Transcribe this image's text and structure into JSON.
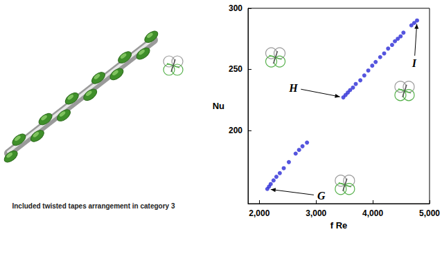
{
  "chart_data": {
    "type": "scatter",
    "x_label": "f Re",
    "y_label": "Nu",
    "x": [
      2140,
      2170,
      2200,
      2250,
      2300,
      2360,
      2430,
      2520,
      2640,
      2700,
      2760,
      2840,
      3480,
      3520,
      3560,
      3600,
      3650,
      3700,
      3780,
      3850,
      3920,
      3990,
      4050,
      4130,
      4200,
      4270,
      4340,
      4390,
      4440,
      4490,
      4540,
      4680,
      4730,
      4780
    ],
    "values": [
      152,
      154,
      156,
      159,
      162,
      165,
      169,
      174,
      181,
      184,
      187,
      190,
      227,
      229,
      231,
      233,
      235,
      238,
      241,
      245,
      249,
      253,
      256,
      260,
      263,
      267,
      270,
      273,
      275,
      277,
      280,
      286,
      288,
      290
    ],
    "color": "#2b2bd6",
    "marker": "circle",
    "xlim": [
      1800,
      5000
    ],
    "xticks": [
      2000,
      3000,
      4000,
      5000
    ],
    "ylim": [
      140,
      300
    ],
    "yticks": [
      200,
      250,
      300
    ],
    "grid": false,
    "annotations": [
      {
        "text": "G",
        "x": 2140,
        "y": 152
      },
      {
        "text": "H",
        "x": 3480,
        "y": 227
      },
      {
        "text": "I",
        "x": 4780,
        "y": 290
      }
    ]
  },
  "illustration": {
    "caption": "Included twisted tapes arrangement in category 3"
  }
}
